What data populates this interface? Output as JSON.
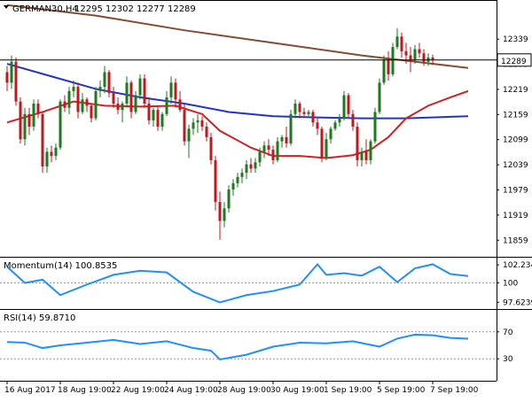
{
  "header": {
    "symbol_label": "GERMAN30,H4",
    "ohlc_label": "12295 12302 12277 12289"
  },
  "colors": {
    "bull": "#1e7a1e",
    "bear": "#c0181e",
    "sma_long": "#8b4a2e",
    "sma_mid": "#2233cc",
    "sma_fast": "#d42020",
    "indicator": "#1e90ff",
    "price_tag_bg": "#ffffff"
  },
  "chart_data": [
    {
      "type": "candlestick",
      "title": "GERMAN30,H4",
      "subtitle": "12295 12302 12277 12289",
      "ylim": [
        11830,
        12390
      ],
      "yticks": [
        "12339",
        "12279",
        "12219",
        "12159",
        "12099",
        "12039",
        "11979",
        "11919",
        "11859"
      ],
      "ytick_values": [
        12339,
        12279,
        12219,
        12159,
        12099,
        12039,
        11979,
        11919,
        11859
      ],
      "current_price": 12289,
      "current_price_label": "12289",
      "xticks": [
        "16 Aug 2017",
        "18 Aug 19:00",
        "22 Aug 19:00",
        "24 Aug 19:00",
        "28 Aug 19:00",
        "30 Aug 19:00",
        "1 Sep 19:00",
        "5 Sep 19:00",
        "7 Sep 19:00"
      ],
      "xtick_bars": [
        0,
        12,
        24,
        36,
        48,
        60,
        72,
        84,
        96
      ],
      "candles": [
        [
          12260,
          12275,
          12215,
          12235
        ],
        [
          12235,
          12300,
          12220,
          12285
        ],
        [
          12285,
          12295,
          12180,
          12190
        ],
        [
          12190,
          12200,
          12090,
          12100
        ],
        [
          12100,
          12175,
          12085,
          12160
        ],
        [
          12160,
          12175,
          12110,
          12130
        ],
        [
          12130,
          12195,
          12120,
          12185
        ],
        [
          12185,
          12195,
          12150,
          12160
        ],
        [
          12160,
          12165,
          12020,
          12035
        ],
        [
          12035,
          12080,
          12020,
          12070
        ],
        [
          12070,
          12085,
          12045,
          12060
        ],
        [
          12060,
          12090,
          12050,
          12080
        ],
        [
          12080,
          12195,
          12075,
          12190
        ],
        [
          12190,
          12205,
          12165,
          12175
        ],
        [
          12175,
          12225,
          12160,
          12215
        ],
        [
          12215,
          12240,
          12200,
          12225
        ],
        [
          12225,
          12235,
          12150,
          12165
        ],
        [
          12165,
          12210,
          12160,
          12195
        ],
        [
          12195,
          12200,
          12165,
          12180
        ],
        [
          12180,
          12185,
          12140,
          12150
        ],
        [
          12150,
          12225,
          12145,
          12215
        ],
        [
          12215,
          12240,
          12200,
          12225
        ],
        [
          12225,
          12275,
          12210,
          12260
        ],
        [
          12260,
          12265,
          12200,
          12210
        ],
        [
          12210,
          12225,
          12175,
          12185
        ],
        [
          12185,
          12200,
          12160,
          12170
        ],
        [
          12170,
          12190,
          12140,
          12185
        ],
        [
          12185,
          12250,
          12180,
          12235
        ],
        [
          12235,
          12240,
          12150,
          12165
        ],
        [
          12165,
          12215,
          12160,
          12205
        ],
        [
          12205,
          12255,
          12195,
          12245
        ],
        [
          12245,
          12255,
          12175,
          12185
        ],
        [
          12185,
          12200,
          12135,
          12145
        ],
        [
          12145,
          12175,
          12130,
          12170
        ],
        [
          12170,
          12180,
          12120,
          12130
        ],
        [
          12130,
          12165,
          12120,
          12160
        ],
        [
          12160,
          12215,
          12155,
          12200
        ],
        [
          12200,
          12250,
          12185,
          12235
        ],
        [
          12235,
          12245,
          12175,
          12195
        ],
        [
          12195,
          12215,
          12165,
          12170
        ],
        [
          12170,
          12185,
          12085,
          12095
        ],
        [
          12095,
          12135,
          12055,
          12125
        ],
        [
          12125,
          12150,
          12110,
          12140
        ],
        [
          12140,
          12160,
          12115,
          12145
        ],
        [
          12145,
          12155,
          12120,
          12130
        ],
        [
          12130,
          12140,
          12095,
          12105
        ],
        [
          12105,
          12115,
          12040,
          12050
        ],
        [
          12050,
          12060,
          11930,
          11950
        ],
        [
          11950,
          11975,
          11860,
          11905
        ],
        [
          11905,
          11950,
          11890,
          11935
        ],
        [
          11935,
          11990,
          11925,
          11980
        ],
        [
          11980,
          12005,
          11965,
          11995
        ],
        [
          11995,
          12020,
          11985,
          12010
        ],
        [
          12010,
          12030,
          11995,
          12020
        ],
        [
          12020,
          12050,
          12005,
          12040
        ],
        [
          12040,
          12055,
          12020,
          12030
        ],
        [
          12030,
          12055,
          12020,
          12045
        ],
        [
          12045,
          12080,
          12035,
          12070
        ],
        [
          12070,
          12095,
          12055,
          12085
        ],
        [
          12085,
          12100,
          12060,
          12075
        ],
        [
          12075,
          12085,
          12040,
          12050
        ],
        [
          12050,
          12105,
          12045,
          12095
        ],
        [
          12095,
          12110,
          12080,
          12105
        ],
        [
          12105,
          12130,
          12080,
          12090
        ],
        [
          12090,
          12170,
          12085,
          12160
        ],
        [
          12160,
          12195,
          12150,
          12185
        ],
        [
          12185,
          12190,
          12150,
          12165
        ],
        [
          12165,
          12175,
          12155,
          12160
        ],
        [
          12160,
          12170,
          12155,
          12165
        ],
        [
          12165,
          12170,
          12130,
          12140
        ],
        [
          12140,
          12150,
          12110,
          12125
        ],
        [
          12125,
          12130,
          12045,
          12055
        ],
        [
          12055,
          12115,
          12050,
          12100
        ],
        [
          12100,
          12130,
          12090,
          12125
        ],
        [
          12125,
          12145,
          12120,
          12140
        ],
        [
          12140,
          12160,
          12130,
          12150
        ],
        [
          12150,
          12215,
          12145,
          12205
        ],
        [
          12205,
          12210,
          12150,
          12160
        ],
        [
          12160,
          12170,
          12120,
          12130
        ],
        [
          12130,
          12140,
          12035,
          12050
        ],
        [
          12050,
          12080,
          12035,
          12070
        ],
        [
          12070,
          12100,
          12040,
          12050
        ],
        [
          12050,
          12100,
          12040,
          12095
        ],
        [
          12095,
          12175,
          12090,
          12165
        ],
        [
          12165,
          12245,
          12160,
          12235
        ],
        [
          12235,
          12300,
          12230,
          12290
        ],
        [
          12290,
          12310,
          12240,
          12255
        ],
        [
          12255,
          12330,
          12250,
          12320
        ],
        [
          12320,
          12365,
          12315,
          12345
        ],
        [
          12345,
          12355,
          12295,
          12310
        ],
        [
          12310,
          12330,
          12280,
          12300
        ],
        [
          12300,
          12320,
          12260,
          12290
        ],
        [
          12290,
          12325,
          12280,
          12315
        ],
        [
          12315,
          12330,
          12295,
          12305
        ],
        [
          12305,
          12315,
          12275,
          12285
        ],
        [
          12285,
          12305,
          12275,
          12295
        ],
        [
          12295,
          12302,
          12277,
          12289
        ]
      ],
      "series": [
        {
          "name": "",
          "color_key": "sma_long",
          "x": [
            0,
            20,
            40,
            60,
            80,
            100,
            104
          ],
          "values": [
            12420,
            12395,
            12360,
            12330,
            12300,
            12275,
            12270
          ]
        },
        {
          "name": "",
          "color_key": "sma_mid",
          "x": [
            0,
            10,
            20,
            30,
            40,
            50,
            60,
            70,
            80,
            90,
            104
          ],
          "values": [
            12280,
            12250,
            12220,
            12200,
            12185,
            12165,
            12155,
            12152,
            12150,
            12150,
            12155
          ]
        },
        {
          "name": "",
          "color_key": "sma_fast",
          "x": [
            0,
            8,
            15,
            22,
            30,
            38,
            44,
            48,
            55,
            60,
            66,
            72,
            78,
            82,
            86,
            90,
            95,
            100,
            104
          ],
          "values": [
            12140,
            12165,
            12190,
            12180,
            12178,
            12180,
            12160,
            12120,
            12080,
            12060,
            12060,
            12055,
            12062,
            12075,
            12105,
            12150,
            12180,
            12200,
            12215
          ]
        }
      ],
      "grid": false
    },
    {
      "type": "line",
      "title": "Momentum(14) 100.8535",
      "ylim": [
        97.0,
        102.9
      ],
      "yticks": [
        "102.234",
        "100",
        "97.6239"
      ],
      "ytick_values": [
        102.234,
        100,
        97.6239
      ],
      "reference_lines": [
        100
      ],
      "series": [
        {
          "name": "",
          "color_key": "indicator",
          "x": [
            0,
            4,
            8,
            12,
            18,
            24,
            30,
            36,
            42,
            48,
            54,
            60,
            66,
            70,
            72,
            76,
            80,
            84,
            88,
            92,
            96,
            100,
            104
          ],
          "values": [
            102.0,
            100.0,
            100.4,
            98.5,
            99.8,
            101.0,
            101.5,
            101.3,
            98.9,
            97.6,
            98.5,
            99.0,
            99.8,
            102.3,
            101.0,
            101.2,
            100.9,
            102.0,
            100.1,
            101.8,
            102.3,
            101.1,
            100.85
          ]
        }
      ]
    },
    {
      "type": "line",
      "title": "RSI(14) 59.8710",
      "ylim": [
        0,
        100
      ],
      "yticks": [
        "70",
        "30"
      ],
      "ytick_values": [
        70,
        30
      ],
      "reference_lines": [
        70,
        30
      ],
      "series": [
        {
          "name": "",
          "color_key": "indicator",
          "x": [
            0,
            4,
            8,
            12,
            18,
            24,
            30,
            36,
            42,
            46,
            48,
            54,
            60,
            66,
            72,
            78,
            84,
            88,
            92,
            96,
            100,
            104
          ],
          "values": [
            55.0,
            54.0,
            46.0,
            50.0,
            54.0,
            58.0,
            52.0,
            56.0,
            46.0,
            42.0,
            29.0,
            36.0,
            48.0,
            54.0,
            53.0,
            56.0,
            48.0,
            60.0,
            66.0,
            65.0,
            61.0,
            59.87
          ]
        }
      ]
    }
  ]
}
